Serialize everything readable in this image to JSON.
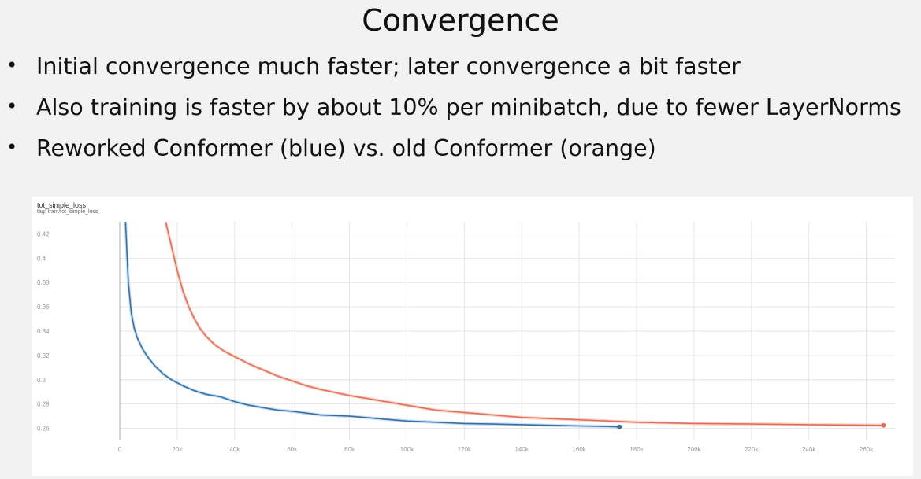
{
  "slide": {
    "title": "Convergence",
    "bullets": [
      "Initial convergence much faster; later convergence a bit faster",
      "Also training is faster by about 10% per minibatch, due to fewer LayerNorms",
      "Reworked Conformer (blue) vs. old Conformer (orange)"
    ]
  },
  "colors": {
    "blue": "#3a6fa0",
    "orange": "#e0705a",
    "blue_light": "#9cc8ee",
    "orange_light": "#f4b3a3"
  },
  "chart_data": {
    "type": "line",
    "title": "tot_simple_loss",
    "subtitle": "tag: train/tot_simple_loss",
    "xlim": [
      0,
      270000
    ],
    "ylim": [
      0.25,
      0.43
    ],
    "x_ticks": [
      0,
      20000,
      40000,
      60000,
      80000,
      100000,
      120000,
      140000,
      160000,
      180000,
      200000,
      220000,
      240000,
      260000
    ],
    "x_tick_labels": [
      "0",
      "20k",
      "40k",
      "60k",
      "80k",
      "100k",
      "120k",
      "140k",
      "160k",
      "180k",
      "200k",
      "220k",
      "240k",
      "260k"
    ],
    "y_ticks": [
      0.26,
      0.28,
      0.3,
      0.32,
      0.34,
      0.36,
      0.38,
      0.4,
      0.42
    ],
    "y_tick_labels": [
      "0.26",
      "0.28",
      "0.3",
      "0.32",
      "0.34",
      "0.36",
      "0.38",
      "0.4",
      "0.42"
    ],
    "grid": true,
    "series": [
      {
        "color": "#3a6fa0",
        "x": [
          2000,
          3000,
          4000,
          5000,
          6000,
          8000,
          10000,
          12000,
          15000,
          18000,
          22000,
          26000,
          30000,
          35000,
          40000,
          45000,
          50000,
          55000,
          60000,
          70000,
          80000,
          90000,
          100000,
          110000,
          120000,
          130000,
          140000,
          150000,
          160000,
          165000,
          170000,
          174000
        ],
        "y": [
          0.43,
          0.38,
          0.355,
          0.343,
          0.335,
          0.325,
          0.318,
          0.312,
          0.305,
          0.3,
          0.295,
          0.291,
          0.288,
          0.286,
          0.282,
          0.279,
          0.277,
          0.275,
          0.274,
          0.271,
          0.27,
          0.268,
          0.266,
          0.265,
          0.264,
          0.2635,
          0.263,
          0.2625,
          0.262,
          0.2618,
          0.2615,
          0.2612
        ]
      },
      {
        "color": "#e0705a",
        "x": [
          16000,
          18000,
          20000,
          22000,
          24000,
          26000,
          28000,
          30000,
          33000,
          36000,
          40000,
          45000,
          50000,
          55000,
          60000,
          65000,
          70000,
          80000,
          90000,
          100000,
          110000,
          120000,
          130000,
          140000,
          160000,
          180000,
          200000,
          220000,
          240000,
          266000
        ],
        "y": [
          0.43,
          0.41,
          0.39,
          0.373,
          0.36,
          0.35,
          0.342,
          0.336,
          0.329,
          0.324,
          0.319,
          0.313,
          0.308,
          0.303,
          0.299,
          0.295,
          0.292,
          0.287,
          0.283,
          0.279,
          0.275,
          0.273,
          0.271,
          0.269,
          0.267,
          0.265,
          0.264,
          0.2635,
          0.263,
          0.2625
        ]
      }
    ]
  }
}
